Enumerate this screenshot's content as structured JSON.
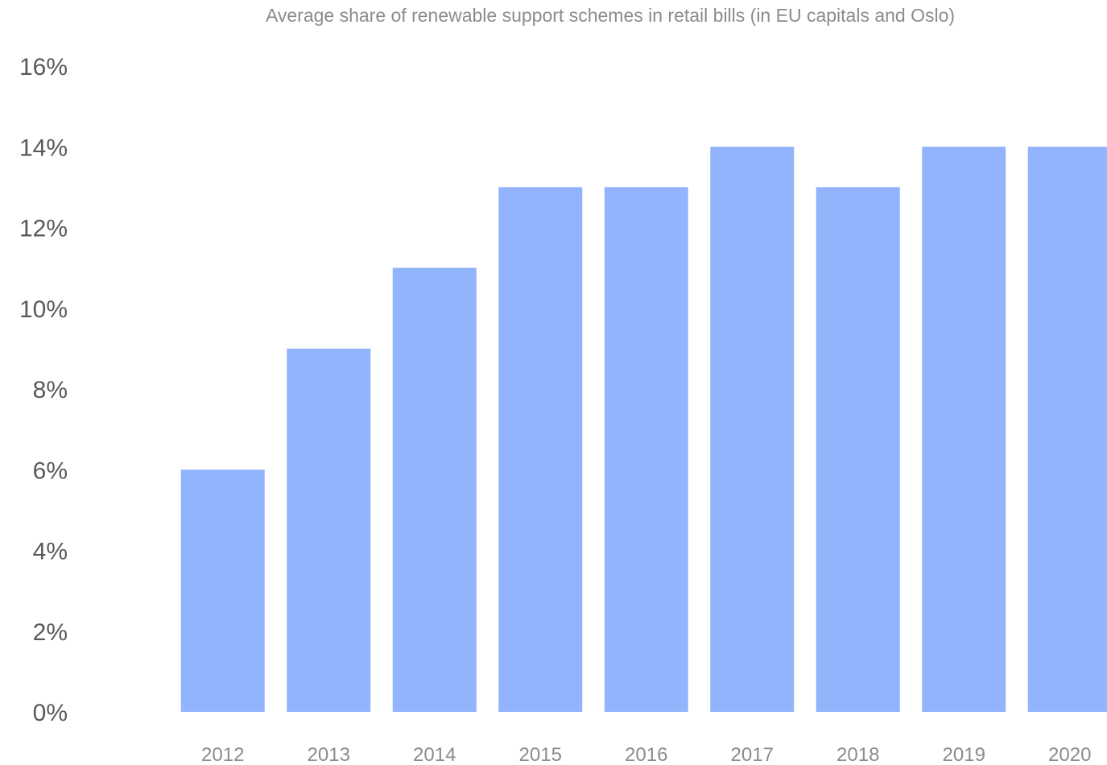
{
  "chart_data": {
    "type": "bar",
    "title": "Average share of renewable support schemes in retail bills (in EU capitals and Oslo)",
    "xlabel": "",
    "ylabel": "",
    "categories": [
      "2012",
      "2013",
      "2014",
      "2015",
      "2016",
      "2017",
      "2018",
      "2019",
      "2020"
    ],
    "values": [
      6,
      9,
      11,
      13,
      13,
      14,
      13,
      14,
      14
    ],
    "ylim": [
      0,
      16
    ],
    "yticks": [
      0,
      2,
      4,
      6,
      8,
      10,
      12,
      14,
      16
    ],
    "ytick_labels": [
      "0%",
      "2%",
      "4%",
      "6%",
      "8%",
      "10%",
      "12%",
      "14%",
      "16%"
    ],
    "grid": false,
    "legend": "none",
    "bar_color": "#92b4fd"
  }
}
